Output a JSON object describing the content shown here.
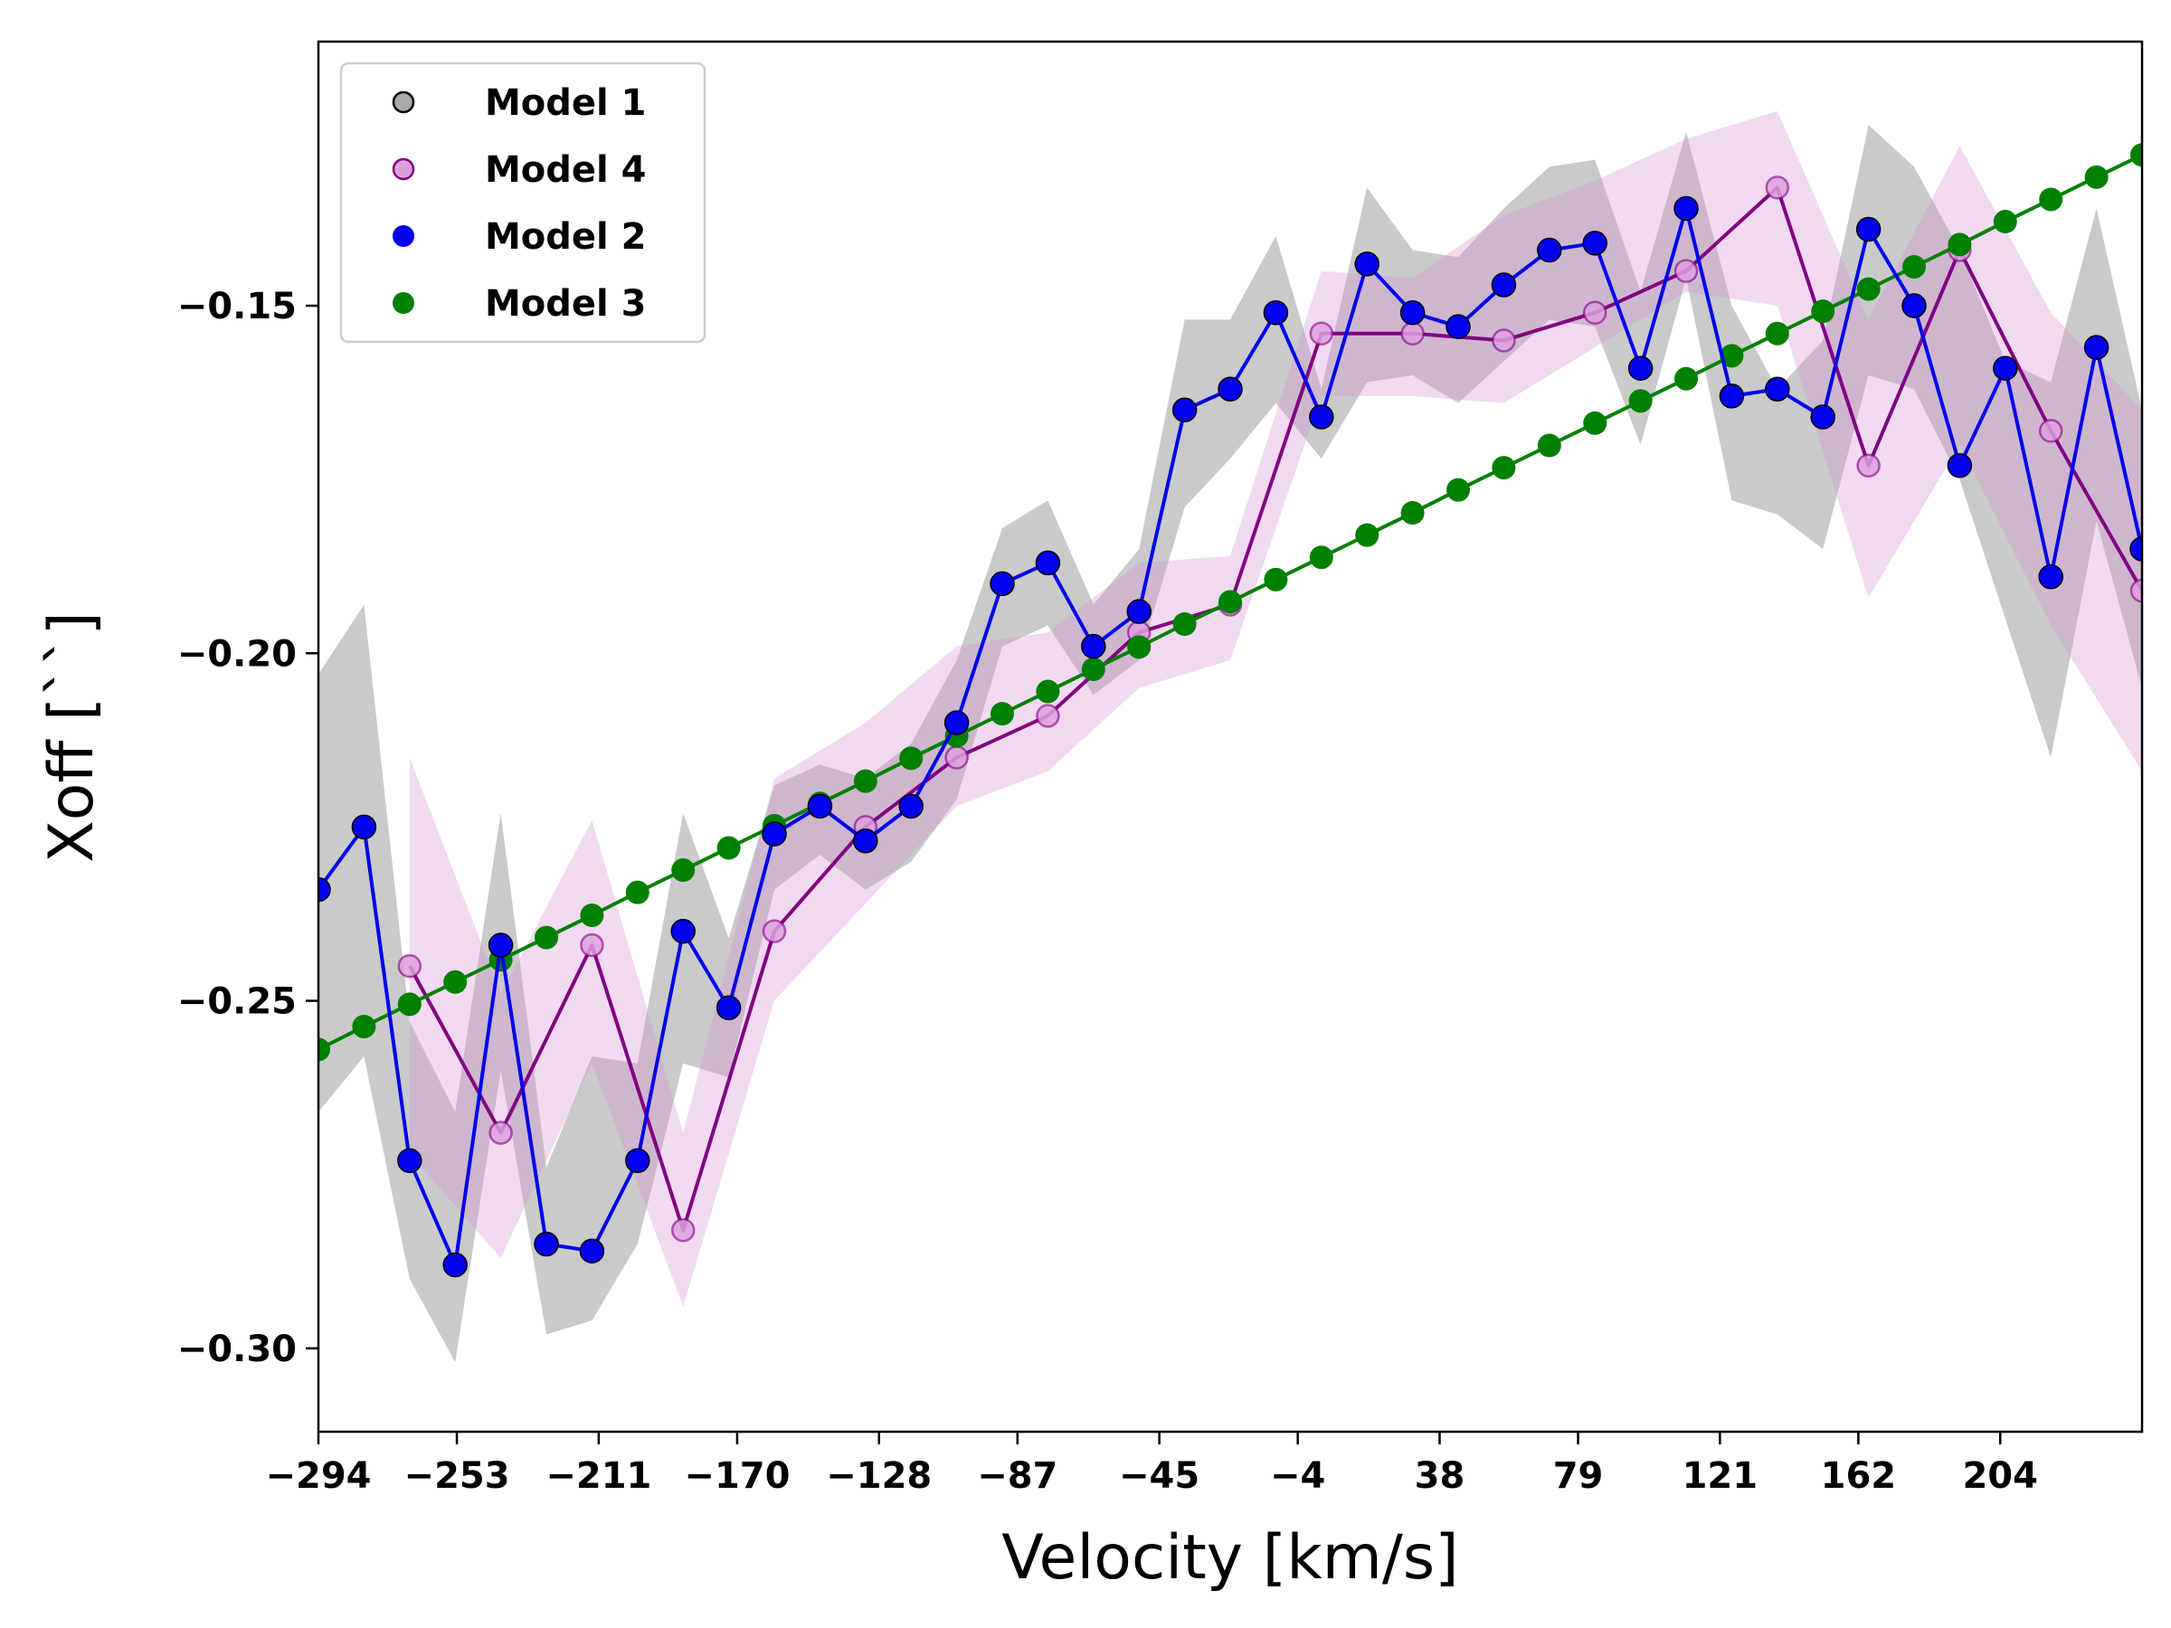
{
  "chart_data": {
    "type": "line",
    "xlabel": "Velocity [km/s]",
    "ylabel": "Xoff [``]",
    "xlim": [
      -294,
      246
    ],
    "ylim": [
      -0.312,
      -0.112
    ],
    "xticks": [
      -294,
      -253,
      -211,
      -170,
      -128,
      -87,
      -45,
      -4,
      38,
      79,
      121,
      162,
      204
    ],
    "yticks": [
      -0.15,
      -0.2,
      -0.25,
      -0.3
    ],
    "ytick_labels": [
      "−0.15",
      "−0.20",
      "−0.25",
      "−0.30"
    ],
    "xtick_labels": [
      "−294",
      "−253",
      "−211",
      "−170",
      "−128",
      "−87",
      "−45",
      "−4",
      "38",
      "79",
      "121",
      "162",
      "204"
    ],
    "legend": {
      "position": "upper-left",
      "entries": [
        {
          "label": "Model 1",
          "marker": "open",
          "color": "#808080"
        },
        {
          "label": "Model 4",
          "marker": "open",
          "color": "#800080"
        },
        {
          "label": "Model 2",
          "marker": "filled",
          "color": "#0000ee"
        },
        {
          "label": "Model 3",
          "marker": "filled",
          "color": "#008000"
        }
      ]
    },
    "series": [
      {
        "name": "Model 1",
        "kind": "band",
        "color": "#808080",
        "fill": "rgba(150,150,150,0.5)",
        "x": [
          -294,
          -280.5,
          -267,
          -253.5,
          -240,
          -226.5,
          -213,
          -199.5,
          -186,
          -172.5,
          -159,
          -145.5,
          -132,
          -118.5,
          -105,
          -91.5,
          -78,
          -64.5,
          -51,
          -37.5,
          -24,
          -10.5,
          3,
          16.5,
          30,
          43.5,
          57,
          70.5,
          84,
          97.5,
          111,
          124.5,
          138,
          151.5,
          165,
          178.5,
          192,
          205.5,
          219,
          232.5,
          246
        ],
        "upper": [
          -0.203,
          -0.193,
          -0.253,
          -0.266,
          -0.223,
          -0.274,
          -0.258,
          -0.259,
          -0.223,
          -0.241,
          -0.219,
          -0.216,
          -0.218,
          -0.213,
          -0.201,
          -0.182,
          -0.178,
          -0.193,
          -0.185,
          -0.152,
          -0.152,
          -0.14,
          -0.162,
          -0.133,
          -0.142,
          -0.143,
          -0.136,
          -0.13,
          -0.129,
          -0.148,
          -0.125,
          -0.15,
          -0.162,
          -0.155,
          -0.124,
          -0.13,
          -0.142,
          -0.158,
          -0.161,
          -0.136,
          -0.165
        ],
        "lower": [
          -0.266,
          -0.258,
          -0.29,
          -0.302,
          -0.26,
          -0.298,
          -0.296,
          -0.285,
          -0.259,
          -0.261,
          -0.234,
          -0.229,
          -0.234,
          -0.23,
          -0.221,
          -0.199,
          -0.196,
          -0.206,
          -0.201,
          -0.179,
          -0.172,
          -0.164,
          -0.172,
          -0.161,
          -0.16,
          -0.164,
          -0.158,
          -0.152,
          -0.153,
          -0.17,
          -0.146,
          -0.178,
          -0.18,
          -0.185,
          -0.16,
          -0.162,
          -0.175,
          -0.195,
          -0.215,
          -0.181,
          -0.205
        ]
      },
      {
        "name": "Model 4",
        "kind": "line-band",
        "color": "#800080",
        "marker_face": "#dda0dd",
        "fill": "rgba(214,150,214,0.35)",
        "x": [
          -267,
          -240,
          -213,
          -186,
          -159,
          -132,
          -105,
          -78,
          -51,
          -24,
          3,
          30,
          57,
          84,
          111,
          138,
          165,
          192,
          219,
          246
        ],
        "y": [
          -0.245,
          -0.269,
          -0.242,
          -0.283,
          -0.24,
          -0.225,
          -0.215,
          -0.209,
          -0.197,
          -0.193,
          -0.154,
          -0.154,
          -0.155,
          -0.151,
          -0.145,
          -0.133,
          -0.173,
          -0.142,
          -0.168,
          -0.191
        ],
        "upper": [
          -0.215,
          -0.249,
          -0.224,
          -0.269,
          -0.218,
          -0.21,
          -0.199,
          -0.197,
          -0.187,
          -0.186,
          -0.145,
          -0.146,
          -0.137,
          -0.132,
          -0.126,
          -0.122,
          -0.152,
          -0.127,
          -0.151,
          -0.165
        ],
        "lower": [
          -0.272,
          -0.287,
          -0.259,
          -0.294,
          -0.25,
          -0.236,
          -0.222,
          -0.217,
          -0.205,
          -0.201,
          -0.163,
          -0.163,
          -0.164,
          -0.156,
          -0.148,
          -0.15,
          -0.192,
          -0.17,
          -0.196,
          -0.217
        ]
      },
      {
        "name": "Model 2",
        "kind": "line-markers",
        "color": "#0000ee",
        "marker_face": "#0000ee",
        "x": [
          -294,
          -280.5,
          -267,
          -253.5,
          -240,
          -226.5,
          -213,
          -199.5,
          -186,
          -172.5,
          -159,
          -145.5,
          -132,
          -118.5,
          -105,
          -91.5,
          -78,
          -64.5,
          -51,
          -37.5,
          -24,
          -10.5,
          3,
          16.5,
          30,
          43.5,
          57,
          70.5,
          84,
          97.5,
          111,
          124.5,
          138,
          151.5,
          165,
          178.5,
          192,
          205.5,
          219,
          232.5,
          246
        ],
        "y": [
          -0.234,
          -0.225,
          -0.273,
          -0.288,
          -0.242,
          -0.285,
          -0.286,
          -0.273,
          -0.24,
          -0.251,
          -0.226,
          -0.222,
          -0.227,
          -0.222,
          -0.21,
          -0.19,
          -0.187,
          -0.199,
          -0.194,
          -0.165,
          -0.162,
          -0.151,
          -0.166,
          -0.144,
          -0.151,
          -0.153,
          -0.147,
          -0.142,
          -0.141,
          -0.159,
          -0.136,
          -0.163,
          -0.162,
          -0.166,
          -0.139,
          -0.15,
          -0.173,
          -0.159,
          -0.189,
          -0.156,
          -0.185
        ]
      },
      {
        "name": "Model 3",
        "kind": "line-markers",
        "color": "#008000",
        "marker_face": "#008000",
        "x": [
          -294,
          -280.5,
          -267,
          -253.5,
          -240,
          -226.5,
          -213,
          -199.5,
          -186,
          -172.5,
          -159,
          -145.5,
          -132,
          -118.5,
          -105,
          -91.5,
          -78,
          -64.5,
          -51,
          -37.5,
          -24,
          -10.5,
          3,
          16.5,
          30,
          43.5,
          57,
          70.5,
          84,
          97.5,
          111,
          124.5,
          138,
          151.5,
          165,
          178.5,
          192,
          205.5,
          219,
          232.5,
          246
        ],
        "y": [
          -0.257,
          -0.2537,
          -0.2505,
          -0.2473,
          -0.2441,
          -0.2409,
          -0.2377,
          -0.2344,
          -0.2312,
          -0.228,
          -0.2248,
          -0.2216,
          -0.2184,
          -0.2151,
          -0.2119,
          -0.2087,
          -0.2055,
          -0.2023,
          -0.1991,
          -0.1958,
          -0.1926,
          -0.1894,
          -0.1862,
          -0.183,
          -0.1798,
          -0.1765,
          -0.1733,
          -0.1701,
          -0.1669,
          -0.1637,
          -0.1605,
          -0.1572,
          -0.154,
          -0.1508,
          -0.1476,
          -0.1444,
          -0.1412,
          -0.1379,
          -0.1347,
          -0.1315,
          -0.1283
        ]
      }
    ]
  }
}
